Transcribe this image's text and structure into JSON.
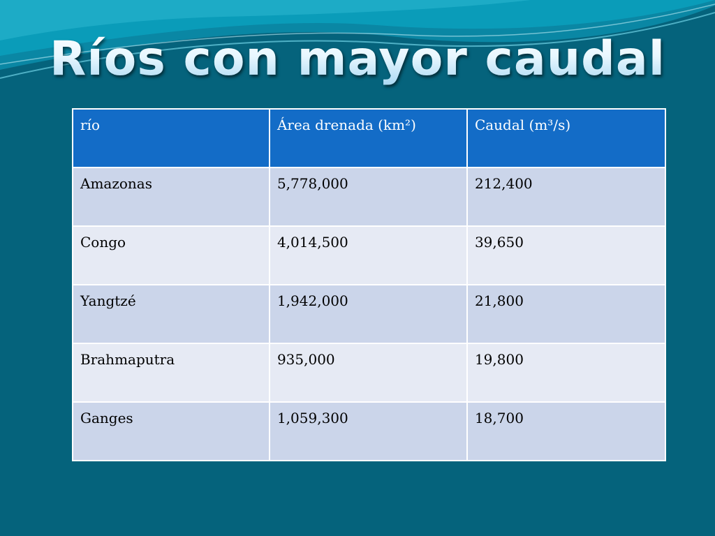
{
  "slide": {
    "title": "Ríos con mayor caudal"
  },
  "table": {
    "headers": [
      "río",
      "Área drenada (km²)",
      "Caudal (m³/s)"
    ],
    "rows": [
      [
        "Amazonas",
        "5,778,000",
        "212,400"
      ],
      [
        "Congo",
        "4,014,500",
        "39,650"
      ],
      [
        "Yangtzé",
        "1,942,000",
        "21,800"
      ],
      [
        "Brahmaputra",
        "935,000",
        "19,800"
      ],
      [
        "Ganges",
        "1,059,300",
        "18,700"
      ]
    ]
  },
  "colors": {
    "background": "#05637c",
    "header_fill": "#136cc7",
    "row_dark": "#cbd5ea",
    "row_light": "#e6eaf4"
  }
}
